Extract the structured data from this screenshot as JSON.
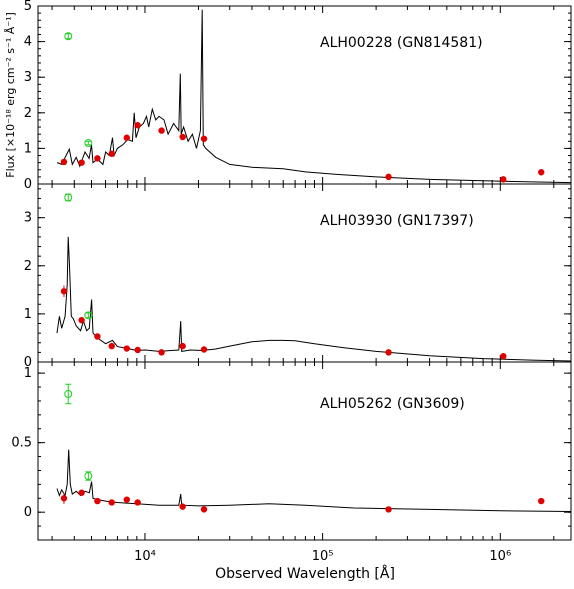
{
  "figure": {
    "xlabel": "Observed Wavelength [Å]",
    "ylabel": "Flux [×10⁻¹⁸ erg cm⁻² s⁻¹ Å⁻¹]"
  },
  "colors": {
    "photometry": "#e00000",
    "upper_limits": "#22cc22",
    "spectrum": "#000000"
  },
  "chart_data": [
    {
      "type": "scatter",
      "title": "ALH00228 (GN814581)",
      "xlog": true,
      "xlim": [
        2500,
        2500000
      ],
      "ylim": [
        0,
        5
      ],
      "yticks": [
        0,
        1,
        2,
        3,
        4,
        5
      ],
      "xticks": [
        {
          "value": 10000,
          "label": "10⁴"
        },
        {
          "value": 100000,
          "label": "10⁵"
        },
        {
          "value": 1000000,
          "label": "10⁶"
        }
      ],
      "photometry": [
        {
          "x": 3500,
          "y": 0.62
        },
        {
          "x": 4400,
          "y": 0.6
        },
        {
          "x": 5400,
          "y": 0.72
        },
        {
          "x": 6500,
          "y": 0.85
        },
        {
          "x": 7900,
          "y": 1.3
        },
        {
          "x": 9100,
          "y": 1.65
        },
        {
          "x": 12400,
          "y": 1.5
        },
        {
          "x": 16300,
          "y": 1.32
        },
        {
          "x": 21500,
          "y": 1.27
        },
        {
          "x": 235000,
          "y": 0.2
        },
        {
          "x": 1040000,
          "y": 0.13
        },
        {
          "x": 1700000,
          "y": 0.33
        }
      ],
      "upper_limits": [
        {
          "x": 3700,
          "y": 4.15,
          "err": 0.07
        },
        {
          "x": 4800,
          "y": 1.15,
          "err": 0.05
        }
      ],
      "spectrum": [
        [
          3200,
          0.6
        ],
        [
          3400,
          0.55
        ],
        [
          3600,
          0.8
        ],
        [
          3750,
          0.98
        ],
        [
          3900,
          0.55
        ],
        [
          4100,
          0.75
        ],
        [
          4300,
          0.5
        ],
        [
          4600,
          0.9
        ],
        [
          4850,
          0.72
        ],
        [
          5000,
          1.1
        ],
        [
          5100,
          0.6
        ],
        [
          5400,
          0.7
        ],
        [
          5800,
          0.55
        ],
        [
          6000,
          0.9
        ],
        [
          6300,
          0.8
        ],
        [
          6563,
          1.3
        ],
        [
          6700,
          0.8
        ],
        [
          7000,
          1.0
        ],
        [
          7500,
          1.1
        ],
        [
          8000,
          1.25
        ],
        [
          8500,
          1.2
        ],
        [
          8700,
          2.0
        ],
        [
          8900,
          1.3
        ],
        [
          9300,
          1.6
        ],
        [
          9800,
          1.7
        ],
        [
          10200,
          1.9
        ],
        [
          10500,
          1.6
        ],
        [
          11000,
          2.1
        ],
        [
          11500,
          1.8
        ],
        [
          12000,
          1.9
        ],
        [
          12800,
          1.8
        ],
        [
          13500,
          1.4
        ],
        [
          14500,
          1.7
        ],
        [
          15500,
          1.5
        ],
        [
          15800,
          3.1
        ],
        [
          16000,
          1.4
        ],
        [
          16500,
          1.6
        ],
        [
          17500,
          1.2
        ],
        [
          18500,
          1.4
        ],
        [
          19500,
          1.0
        ],
        [
          20500,
          1.5
        ],
        [
          21000,
          4.9
        ],
        [
          21300,
          1.1
        ],
        [
          22000,
          1.0
        ],
        [
          25000,
          0.75
        ],
        [
          30000,
          0.55
        ],
        [
          40000,
          0.47
        ],
        [
          60000,
          0.43
        ],
        [
          80000,
          0.34
        ],
        [
          120000,
          0.27
        ],
        [
          200000,
          0.2
        ],
        [
          400000,
          0.13
        ],
        [
          800000,
          0.09
        ],
        [
          1500000,
          0.06
        ],
        [
          2500000,
          0.04
        ]
      ]
    },
    {
      "type": "scatter",
      "title": "ALH03930 (GN17397)",
      "xlog": true,
      "xlim": [
        2500,
        2500000
      ],
      "ylim": [
        0,
        3.7
      ],
      "yticks": [
        0,
        1,
        2,
        3
      ],
      "photometry": [
        {
          "x": 3500,
          "y": 1.47,
          "err": 0.12
        },
        {
          "x": 4400,
          "y": 0.87
        },
        {
          "x": 5400,
          "y": 0.53
        },
        {
          "x": 6500,
          "y": 0.33
        },
        {
          "x": 7900,
          "y": 0.28
        },
        {
          "x": 9100,
          "y": 0.25
        },
        {
          "x": 12400,
          "y": 0.2
        },
        {
          "x": 16300,
          "y": 0.33
        },
        {
          "x": 21500,
          "y": 0.26
        },
        {
          "x": 235000,
          "y": 0.2
        },
        {
          "x": 1040000,
          "y": 0.12
        }
      ],
      "upper_limits": [
        {
          "x": 3700,
          "y": 3.42,
          "err": 0.07
        },
        {
          "x": 4800,
          "y": 0.97,
          "err": 0.05
        }
      ],
      "spectrum": [
        [
          3200,
          0.6
        ],
        [
          3300,
          0.95
        ],
        [
          3400,
          0.7
        ],
        [
          3550,
          0.95
        ],
        [
          3650,
          1.6
        ],
        [
          3700,
          2.6
        ],
        [
          3760,
          2.0
        ],
        [
          3850,
          0.95
        ],
        [
          3950,
          0.9
        ],
        [
          4100,
          0.75
        ],
        [
          4340,
          0.65
        ],
        [
          4500,
          0.85
        ],
        [
          4700,
          0.65
        ],
        [
          4860,
          0.7
        ],
        [
          5007,
          1.3
        ],
        [
          5100,
          0.6
        ],
        [
          5400,
          0.5
        ],
        [
          6000,
          0.38
        ],
        [
          6563,
          0.45
        ],
        [
          7000,
          0.32
        ],
        [
          8000,
          0.28
        ],
        [
          9000,
          0.24
        ],
        [
          10000,
          0.25
        ],
        [
          12000,
          0.22
        ],
        [
          14000,
          0.24
        ],
        [
          15500,
          0.25
        ],
        [
          15900,
          0.85
        ],
        [
          16100,
          0.22
        ],
        [
          18000,
          0.25
        ],
        [
          21000,
          0.24
        ],
        [
          25000,
          0.27
        ],
        [
          30000,
          0.33
        ],
        [
          40000,
          0.42
        ],
        [
          50000,
          0.45
        ],
        [
          60000,
          0.45
        ],
        [
          70000,
          0.44
        ],
        [
          90000,
          0.38
        ],
        [
          130000,
          0.3
        ],
        [
          200000,
          0.22
        ],
        [
          400000,
          0.13
        ],
        [
          800000,
          0.07
        ],
        [
          1500000,
          0.04
        ],
        [
          2500000,
          0.02
        ]
      ]
    },
    {
      "type": "scatter",
      "title": "ALH05262 (GN3609)",
      "xlog": true,
      "xlim": [
        2500,
        2500000
      ],
      "ylim": [
        -0.2,
        1.08
      ],
      "yticks": [
        0,
        0.5,
        1
      ],
      "photometry": [
        {
          "x": 3500,
          "y": 0.1,
          "err": 0.04
        },
        {
          "x": 4400,
          "y": 0.14
        },
        {
          "x": 5400,
          "y": 0.08
        },
        {
          "x": 6500,
          "y": 0.07
        },
        {
          "x": 7900,
          "y": 0.09
        },
        {
          "x": 9100,
          "y": 0.07
        },
        {
          "x": 16300,
          "y": 0.04
        },
        {
          "x": 21500,
          "y": 0.02
        },
        {
          "x": 235000,
          "y": 0.02
        },
        {
          "x": 1700000,
          "y": 0.08
        }
      ],
      "upper_limits": [
        {
          "x": 3700,
          "y": 0.85,
          "err": 0.07
        },
        {
          "x": 4800,
          "y": 0.26,
          "err": 0.03
        }
      ],
      "spectrum": [
        [
          3200,
          0.17
        ],
        [
          3300,
          0.12
        ],
        [
          3400,
          0.16
        ],
        [
          3550,
          0.12
        ],
        [
          3650,
          0.2
        ],
        [
          3720,
          0.45
        ],
        [
          3800,
          0.2
        ],
        [
          3900,
          0.13
        ],
        [
          4100,
          0.15
        ],
        [
          4340,
          0.12
        ],
        [
          4600,
          0.15
        ],
        [
          4860,
          0.14
        ],
        [
          5007,
          0.22
        ],
        [
          5100,
          0.1
        ],
        [
          5500,
          0.09
        ],
        [
          6000,
          0.08
        ],
        [
          7000,
          0.07
        ],
        [
          9000,
          0.06
        ],
        [
          12000,
          0.05
        ],
        [
          15500,
          0.05
        ],
        [
          15900,
          0.13
        ],
        [
          16100,
          0.05
        ],
        [
          20000,
          0.045
        ],
        [
          30000,
          0.05
        ],
        [
          50000,
          0.06
        ],
        [
          80000,
          0.05
        ],
        [
          150000,
          0.03
        ],
        [
          400000,
          0.02
        ],
        [
          1000000,
          0.01
        ],
        [
          2500000,
          0.005
        ]
      ]
    }
  ]
}
